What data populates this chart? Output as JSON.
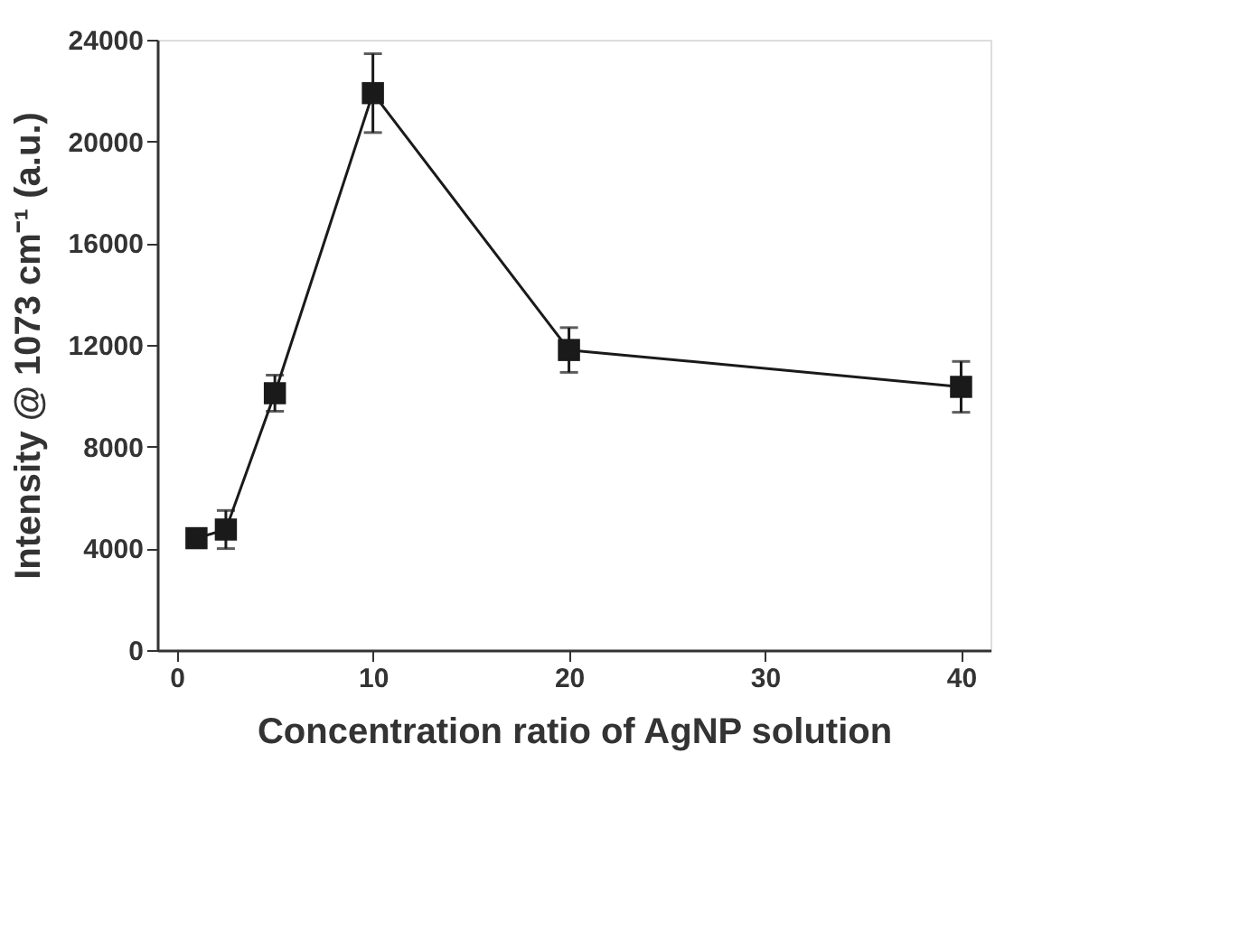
{
  "chart_data": {
    "type": "line",
    "xlabel": "Concentration ratio of AgNP solution",
    "ylabel": "Intensity @ 1073 cm⁻¹ (a.u.)",
    "x": [
      1,
      2.5,
      5,
      10,
      20,
      40
    ],
    "series": [
      {
        "color": "#1a1a1a",
        "values": [
          4400,
          4740,
          10100,
          21900,
          11800,
          10350
        ],
        "errors": [
          null,
          750,
          710,
          1550,
          880,
          1000
        ]
      }
    ],
    "xlim": [
      -1,
      41.5
    ],
    "xticks": [
      0,
      10,
      20,
      30,
      40
    ],
    "ylim": [
      0,
      24000
    ],
    "yticks": [
      0,
      4000,
      8000,
      12000,
      16000,
      20000,
      24000
    ],
    "marker": "square",
    "line_style": "solid",
    "grid": false
  }
}
